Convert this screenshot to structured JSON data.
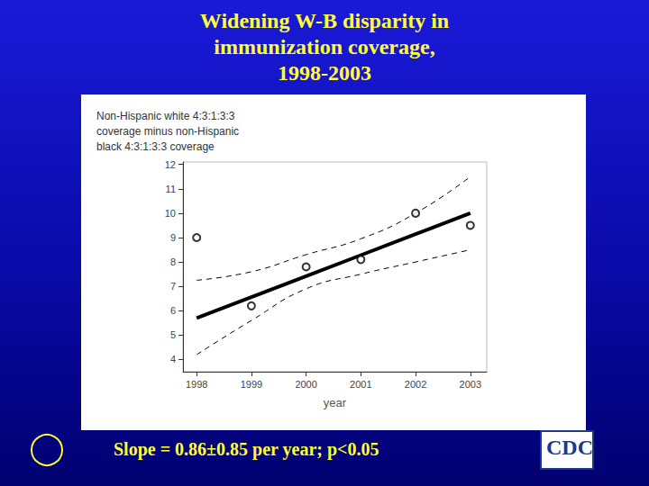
{
  "chart_data": {
    "type": "scatter",
    "title": "Widening W-B disparity in\nimmunization coverage,\n1998-2003",
    "ylabel": "Non-Hispanic white 4:3:1:3:3\ncoverage minus non-Hispanic\nblack 4:3:1:3:3 coverage",
    "xlabel": "year",
    "annotation": "Slope = 0.86±0.85 per year; p<0.05",
    "logo": "CDC",
    "x": [
      1998,
      1999,
      2000,
      2001,
      2002,
      2003
    ],
    "series": [
      {
        "type": "scatter",
        "marker": "open circle",
        "color": "#000000",
        "values": [
          9.0,
          6.2,
          7.8,
          8.1,
          10.0,
          9.5
        ]
      },
      {
        "type": "line",
        "line_style": "solid",
        "color": "#000000",
        "values": [
          5.7,
          6.56,
          7.42,
          8.28,
          9.14,
          10.0
        ]
      },
      {
        "type": "line",
        "line_style": "dashed",
        "color": "#000000",
        "values": [
          7.25,
          7.6,
          8.3,
          8.95,
          10.0,
          11.5
        ]
      },
      {
        "type": "line",
        "line_style": "dashed",
        "color": "#000000",
        "values": [
          4.2,
          5.6,
          6.9,
          7.5,
          8.0,
          8.5
        ]
      }
    ],
    "xlim": [
      1997.75,
      2003.3
    ],
    "xticks": [
      1998,
      1999,
      2000,
      2001,
      2002,
      2003
    ],
    "ylim": [
      3.5,
      12.1
    ],
    "yticks": [
      4,
      5,
      6,
      7,
      8,
      9,
      10,
      11,
      12
    ],
    "grid": false
  }
}
